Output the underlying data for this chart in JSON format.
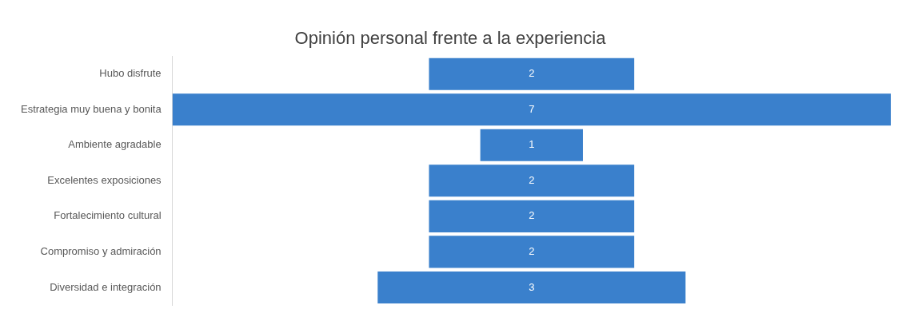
{
  "chart_data": {
    "type": "other",
    "title": "Opinión personal frente a la experiencia",
    "categories": [
      "Hubo disfrute",
      "Estrategia muy buena y bonita",
      "Ambiente agradable",
      "Excelentes exposiciones",
      "Fortalecimiento cultural",
      "Compromiso y admiración",
      "Diversidad e integración"
    ],
    "values": [
      2,
      7,
      1,
      2,
      2,
      2,
      3
    ],
    "color": "#3a80cc",
    "data_labels": true
  }
}
